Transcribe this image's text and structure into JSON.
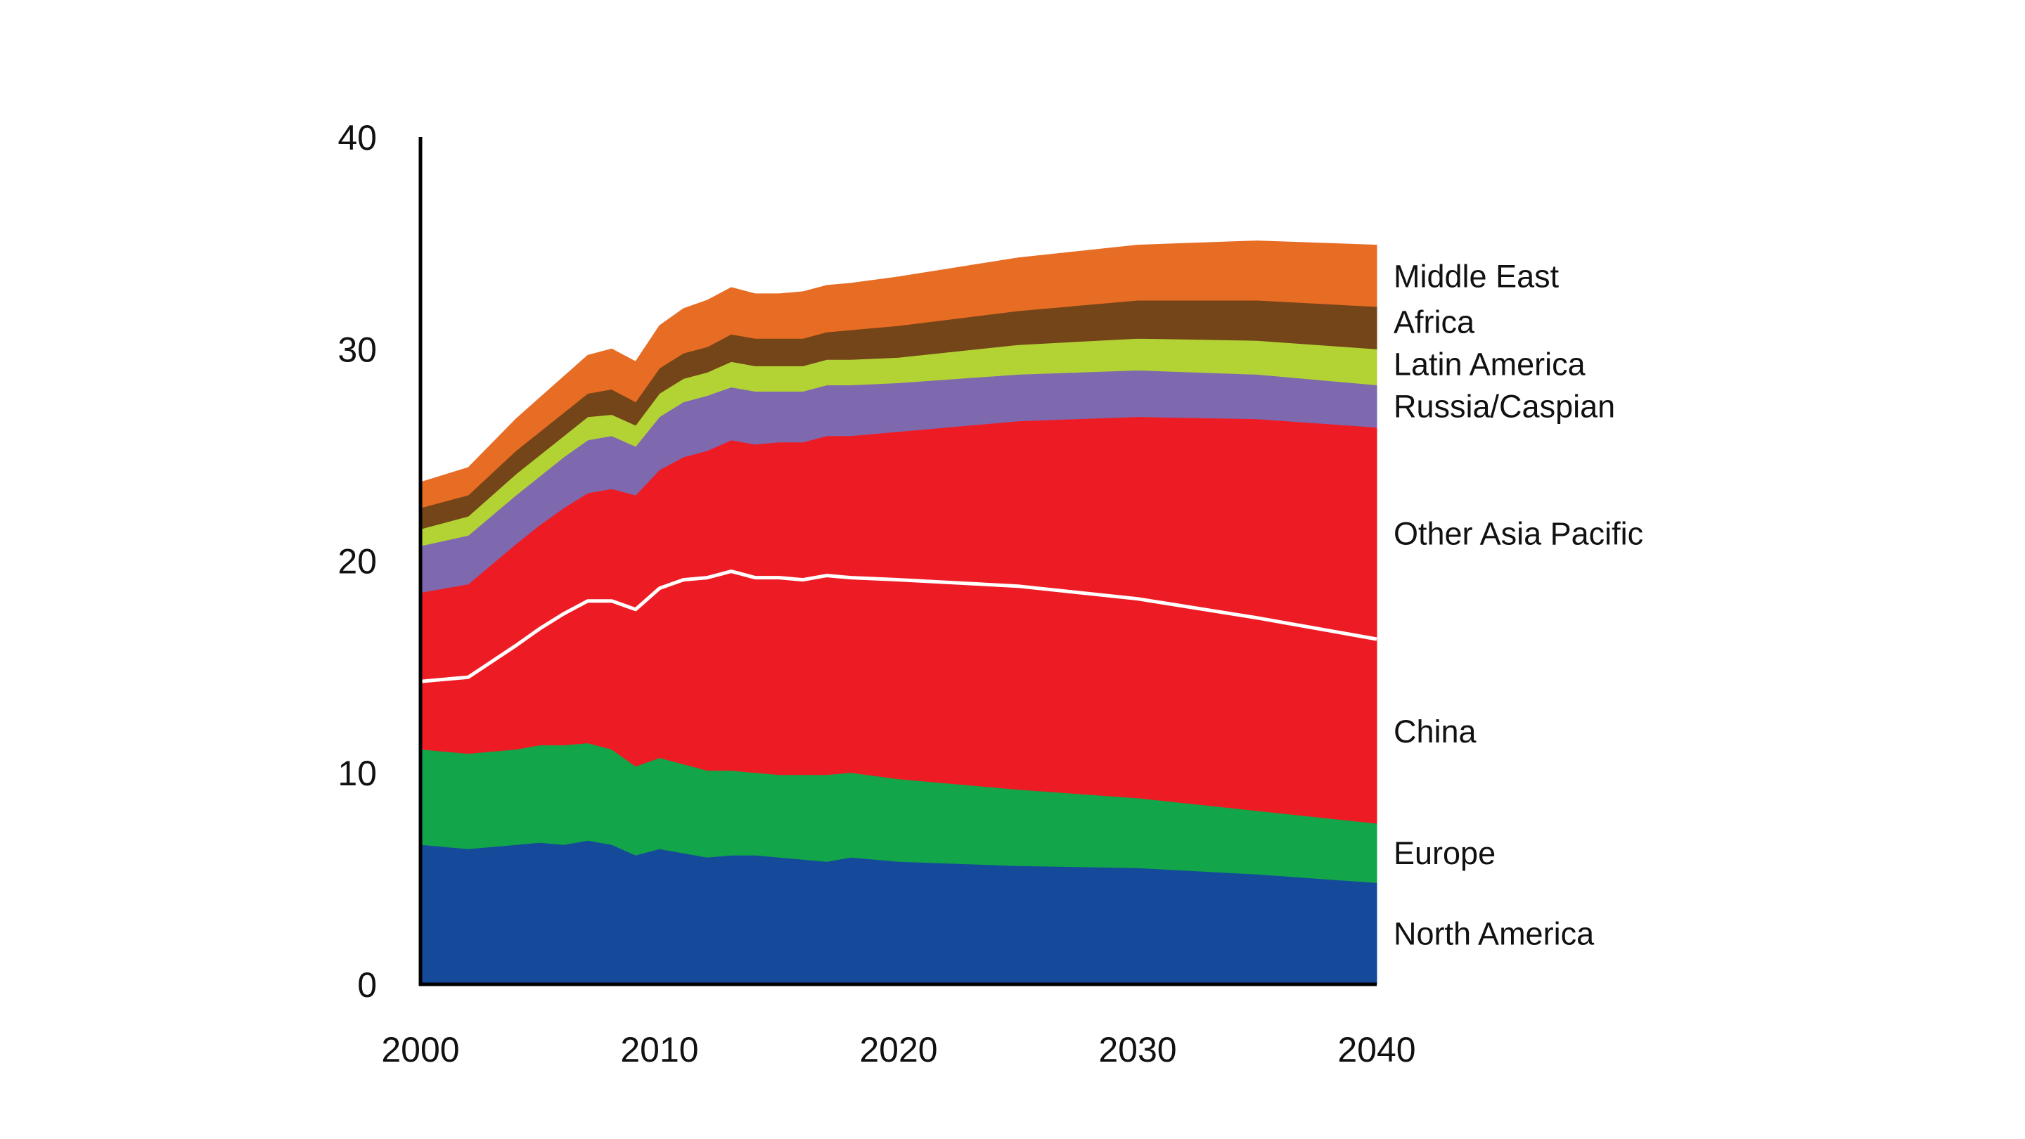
{
  "chart_data": {
    "type": "area",
    "stacked": true,
    "title": "",
    "xlabel": "",
    "ylabel": "",
    "xlim": [
      2000,
      2040
    ],
    "ylim": [
      0,
      40
    ],
    "x_ticks": [
      "2000",
      "2010",
      "2020",
      "2030",
      "2040"
    ],
    "y_ticks": [
      "0",
      "10",
      "20",
      "30",
      "40"
    ],
    "grid": false,
    "legend": "direct labels at right end",
    "x": [
      2000,
      2002,
      2004,
      2005,
      2006,
      2007,
      2008,
      2009,
      2010,
      2011,
      2012,
      2013,
      2014,
      2015,
      2016,
      2017,
      2018,
      2020,
      2025,
      2030,
      2035,
      2040
    ],
    "series": [
      {
        "name": "North America",
        "color": "#154a9b",
        "values": [
          6.6,
          6.4,
          6.6,
          6.7,
          6.6,
          6.8,
          6.6,
          6.1,
          6.4,
          6.2,
          6.0,
          6.1,
          6.1,
          6.0,
          5.9,
          5.8,
          6.0,
          5.8,
          5.6,
          5.5,
          5.2,
          4.8
        ]
      },
      {
        "name": "Europe",
        "color": "#12a54a",
        "values": [
          4.5,
          4.5,
          4.5,
          4.6,
          4.7,
          4.6,
          4.5,
          4.2,
          4.3,
          4.2,
          4.1,
          4.0,
          3.9,
          3.9,
          4.0,
          4.1,
          4.0,
          3.9,
          3.6,
          3.3,
          3.0,
          2.8
        ]
      },
      {
        "name": "China",
        "color": "#ed1c24",
        "values": [
          3.2,
          3.6,
          4.9,
          5.5,
          6.2,
          6.7,
          7.0,
          7.4,
          8.0,
          8.7,
          9.1,
          9.4,
          9.2,
          9.3,
          9.2,
          9.4,
          9.2,
          9.4,
          9.6,
          9.4,
          9.1,
          8.7
        ]
      },
      {
        "name": "Other Asia Pacific",
        "color": "#ed1c24",
        "values": [
          4.2,
          4.4,
          4.8,
          4.9,
          5.0,
          5.1,
          5.3,
          5.4,
          5.6,
          5.8,
          6.0,
          6.2,
          6.3,
          6.4,
          6.5,
          6.6,
          6.7,
          7.0,
          7.8,
          8.6,
          9.4,
          10.0
        ]
      },
      {
        "name": "Russia/Caspian",
        "color": "#7f69ae",
        "values": [
          2.2,
          2.3,
          2.3,
          2.3,
          2.4,
          2.5,
          2.5,
          2.3,
          2.5,
          2.6,
          2.6,
          2.5,
          2.5,
          2.4,
          2.4,
          2.4,
          2.4,
          2.3,
          2.2,
          2.2,
          2.1,
          2.0
        ]
      },
      {
        "name": "Latin America",
        "color": "#b3d335",
        "values": [
          0.8,
          0.9,
          1.0,
          1.0,
          1.0,
          1.1,
          1.0,
          1.0,
          1.1,
          1.1,
          1.1,
          1.2,
          1.2,
          1.2,
          1.2,
          1.2,
          1.2,
          1.2,
          1.4,
          1.5,
          1.6,
          1.7
        ]
      },
      {
        "name": "Africa",
        "color": "#744519",
        "values": [
          1.0,
          1.0,
          1.1,
          1.1,
          1.1,
          1.1,
          1.2,
          1.1,
          1.2,
          1.2,
          1.2,
          1.3,
          1.3,
          1.3,
          1.3,
          1.3,
          1.4,
          1.5,
          1.6,
          1.8,
          1.9,
          2.0
        ]
      },
      {
        "name": "Middle East",
        "color": "#e76c24",
        "values": [
          1.2,
          1.3,
          1.5,
          1.6,
          1.7,
          1.8,
          1.9,
          1.9,
          2.0,
          2.1,
          2.2,
          2.2,
          2.1,
          2.1,
          2.2,
          2.2,
          2.2,
          2.3,
          2.5,
          2.6,
          2.8,
          2.9
        ]
      }
    ],
    "divider_line": {
      "between": [
        "China",
        "Other Asia Pacific"
      ],
      "color": "#ffffff"
    }
  }
}
